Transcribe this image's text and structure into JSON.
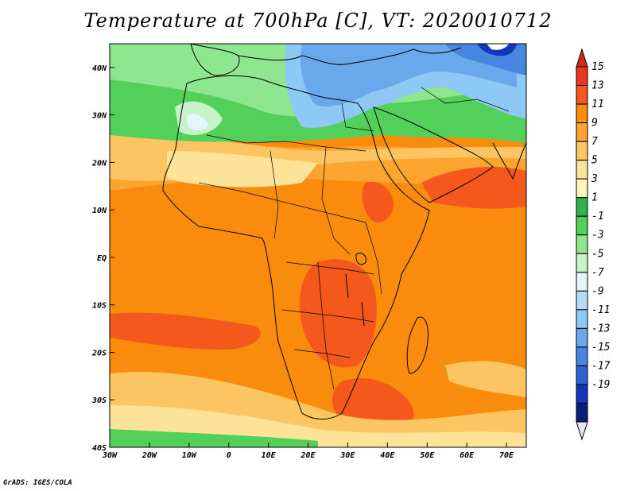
{
  "title": "Temperature at 700hPa [C], VT: 2020010712",
  "credit": "GrADS: IGES/COLA",
  "map": {
    "lon_range": [
      -30,
      75
    ],
    "lat_range": [
      -40,
      45
    ],
    "x_ticks": [
      {
        "value": -30,
        "label": "30W"
      },
      {
        "value": -20,
        "label": "20W"
      },
      {
        "value": -10,
        "label": "10W"
      },
      {
        "value": 0,
        "label": "0"
      },
      {
        "value": 10,
        "label": "10E"
      },
      {
        "value": 20,
        "label": "20E"
      },
      {
        "value": 30,
        "label": "30E"
      },
      {
        "value": 40,
        "label": "40E"
      },
      {
        "value": 50,
        "label": "50E"
      },
      {
        "value": 60,
        "label": "60E"
      },
      {
        "value": 70,
        "label": "70E"
      }
    ],
    "y_ticks": [
      {
        "value": 40,
        "label": "40N"
      },
      {
        "value": 30,
        "label": "30N"
      },
      {
        "value": 20,
        "label": "20N"
      },
      {
        "value": 10,
        "label": "10N"
      },
      {
        "value": 0,
        "label": "EQ"
      },
      {
        "value": -10,
        "label": "10S"
      },
      {
        "value": -20,
        "label": "20S"
      },
      {
        "value": -30,
        "label": "30S"
      },
      {
        "value": -40,
        "label": "40S"
      }
    ]
  },
  "colorbar": {
    "levels": [
      "15",
      "13",
      "11",
      "9",
      "7",
      "5",
      "3",
      "1",
      "-1",
      "-3",
      "-5",
      "-7",
      "-9",
      "-11",
      "-13",
      "-15",
      "-17",
      "-19"
    ],
    "colors": [
      "#e8381c",
      "#f4581c",
      "#f98c0c",
      "#fba52e",
      "#fdc462",
      "#fde397",
      "#fef6b8",
      "#2eb24a",
      "#52d05a",
      "#8ee68e",
      "#c8f2c8",
      "#e2f6fc",
      "#b2dcf8",
      "#8ec8f4",
      "#6aa8ec",
      "#4686e0",
      "#2a62d2",
      "#1436b8",
      "#0a1c7c"
    ],
    "top_color": "#d42a14",
    "bottom_color": "#e6e6fa"
  }
}
